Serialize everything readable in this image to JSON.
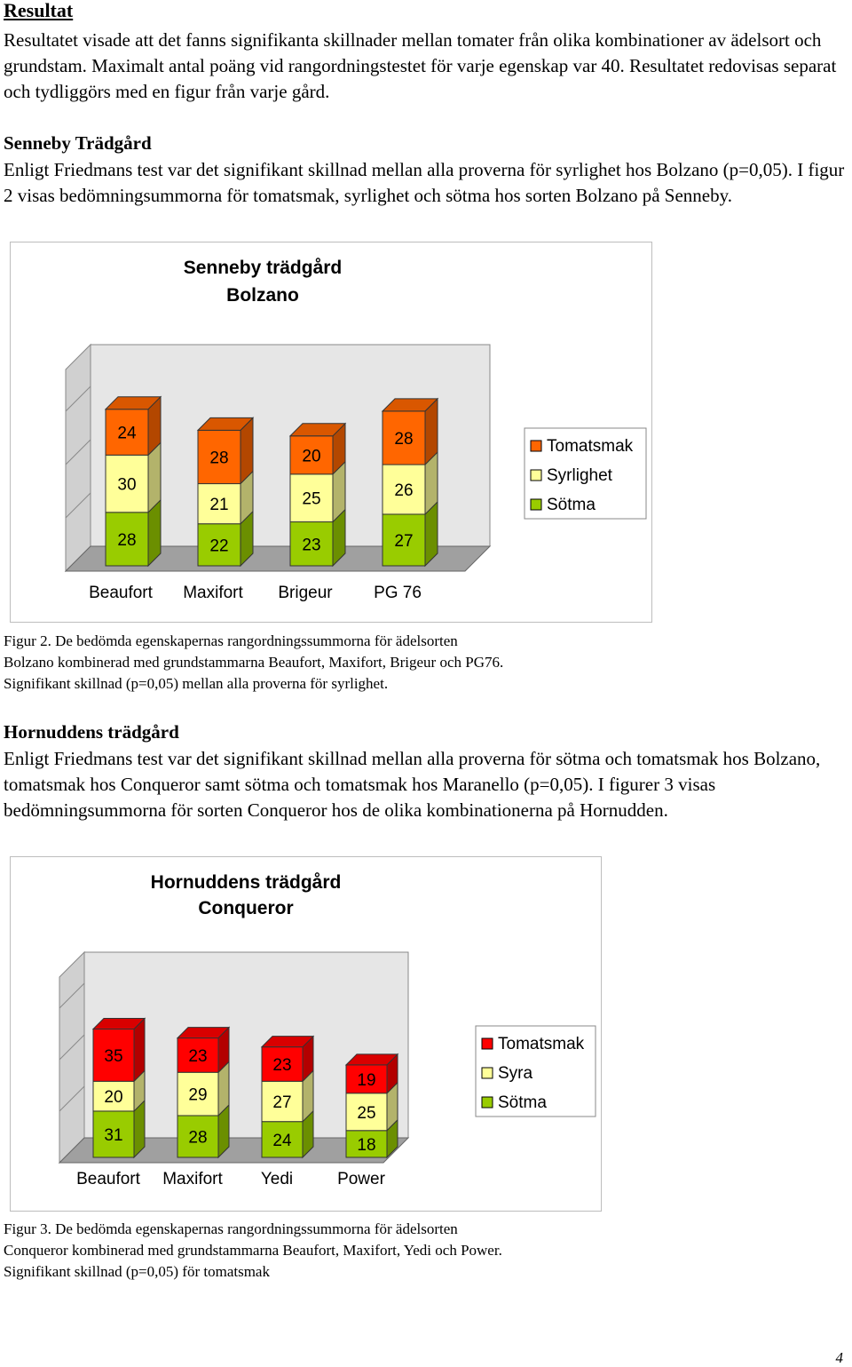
{
  "section_title": "Resultat",
  "intro_text": "Resultatet visade att det fanns signifikanta skillnader mellan tomater från olika kombinationer av ädelsort och grundstam. Maximalt antal poäng vid rangordningstestet för varje egenskap var 40. Resultatet redovisas separat och tydliggörs med en figur från varje gård.",
  "senneby": {
    "heading": "Senneby Trädgård",
    "text": "Enligt Friedmans test var det signifikant skillnad mellan alla proverna för syrlighet hos Bolzano (p=0,05). I figur 2 visas bedömningsummorna för tomatsmak, syrlighet och sötma hos sorten Bolzano på Senneby.",
    "caption_lines": [
      "Figur 2. De bedömda egenskapernas rangordningssummorna för ädelsorten",
      "Bolzano kombinerad med grundstammarna Beaufort, Maxifort, Brigeur och PG76.",
      "Signifikant skillnad (p=0,05) mellan alla proverna för syrlighet."
    ]
  },
  "hornudden": {
    "heading": "Hornuddens trädgård",
    "text": "Enligt Friedmans test var det signifikant skillnad mellan alla proverna för sötma och tomatsmak hos Bolzano, tomatsmak hos Conqueror samt sötma och tomatsmak hos Maranello (p=0,05). I figurer 3 visas bedömningsummorna för sorten Conqueror hos de olika kombinationerna på Hornudden.",
    "caption_lines": [
      "Figur 3. De bedömda egenskapernas rangordningssummorna för ädelsorten",
      "Conqueror kombinerad med grundstammarna Beaufort, Maxifort, Yedi och Power.",
      "Signifikant skillnad (p=0,05) för tomatsmak"
    ]
  },
  "page_number": "4",
  "chart_data": [
    {
      "type": "bar",
      "stacked": true,
      "title_lines": [
        "Senneby trädgård",
        "Bolzano"
      ],
      "categories": [
        "Beaufort",
        "Maxifort",
        "Brigeur",
        "PG 76"
      ],
      "series": [
        {
          "name": "Sötma",
          "values": [
            28,
            22,
            23,
            27
          ],
          "color": "#99cc00"
        },
        {
          "name": "Syrlighet",
          "values": [
            30,
            21,
            25,
            26
          ],
          "color": "#ffff99"
        },
        {
          "name": "Tomatsmak",
          "values": [
            24,
            28,
            20,
            28
          ],
          "color": "#ff6600"
        }
      ],
      "legend": [
        "Tomatsmak",
        "Syrlighet",
        "Sötma"
      ],
      "legend_colors": [
        "#ff6600",
        "#ffff99",
        "#99cc00"
      ],
      "legend_position": "right",
      "grid": false
    },
    {
      "type": "bar",
      "stacked": true,
      "title_lines": [
        "Hornuddens trädgård",
        "Conqueror"
      ],
      "categories": [
        "Beaufort",
        "Maxifort",
        "Yedi",
        "Power"
      ],
      "series": [
        {
          "name": "Sötma",
          "values": [
            31,
            28,
            24,
            18
          ],
          "color": "#99cc00"
        },
        {
          "name": "Syra",
          "values": [
            20,
            29,
            27,
            25
          ],
          "color": "#ffff99"
        },
        {
          "name": "Tomatsmak",
          "values": [
            35,
            23,
            23,
            19
          ],
          "color": "#ff0000"
        }
      ],
      "legend": [
        "Tomatsmak",
        "Syra",
        "Sötma"
      ],
      "legend_colors": [
        "#ff0000",
        "#ffff99",
        "#99cc00"
      ],
      "legend_position": "right",
      "grid": false
    }
  ]
}
